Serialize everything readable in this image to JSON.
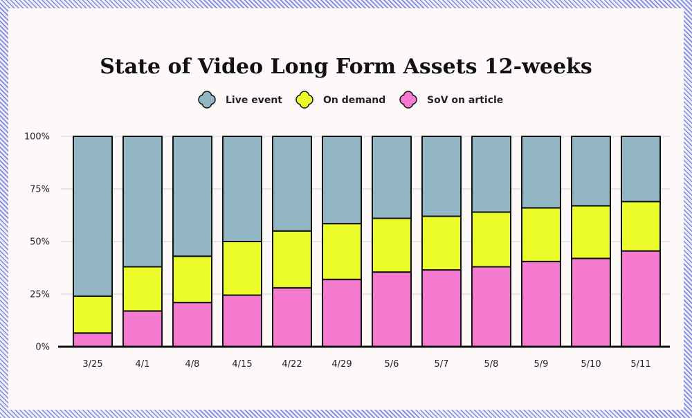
{
  "chart_data": {
    "type": "bar",
    "stacked": true,
    "percent": true,
    "title": "State of Video Long Form Assets 12-weeks",
    "xlabel": "",
    "ylabel": "",
    "ylim": [
      0,
      100
    ],
    "yticks": [
      "0%",
      "25%",
      "50%",
      "75%",
      "100%"
    ],
    "grid": true,
    "legend_position": "top",
    "categories": [
      "3/25",
      "4/1",
      "4/8",
      "4/15",
      "4/22",
      "4/29",
      "5/6",
      "5/7",
      "5/8",
      "5/9",
      "5/10",
      "5/11"
    ],
    "series": [
      {
        "name": "SoV on article",
        "color": "#f47bd0",
        "values": [
          6.5,
          17,
          21,
          24.5,
          28,
          32,
          35.5,
          36.5,
          38,
          40.5,
          42,
          45.5
        ]
      },
      {
        "name": "On demand",
        "color": "#ecfc2b",
        "values": [
          17.5,
          21,
          22,
          25.5,
          27,
          26.5,
          25.5,
          25.5,
          26,
          25.5,
          25,
          23.5
        ]
      },
      {
        "name": "Live event",
        "color": "#93b6c4",
        "values": [
          76,
          62,
          57,
          50,
          45,
          41.5,
          39,
          38,
          36,
          34,
          33,
          31
        ]
      }
    ]
  },
  "legend_icon": "rounded-cross-marker"
}
